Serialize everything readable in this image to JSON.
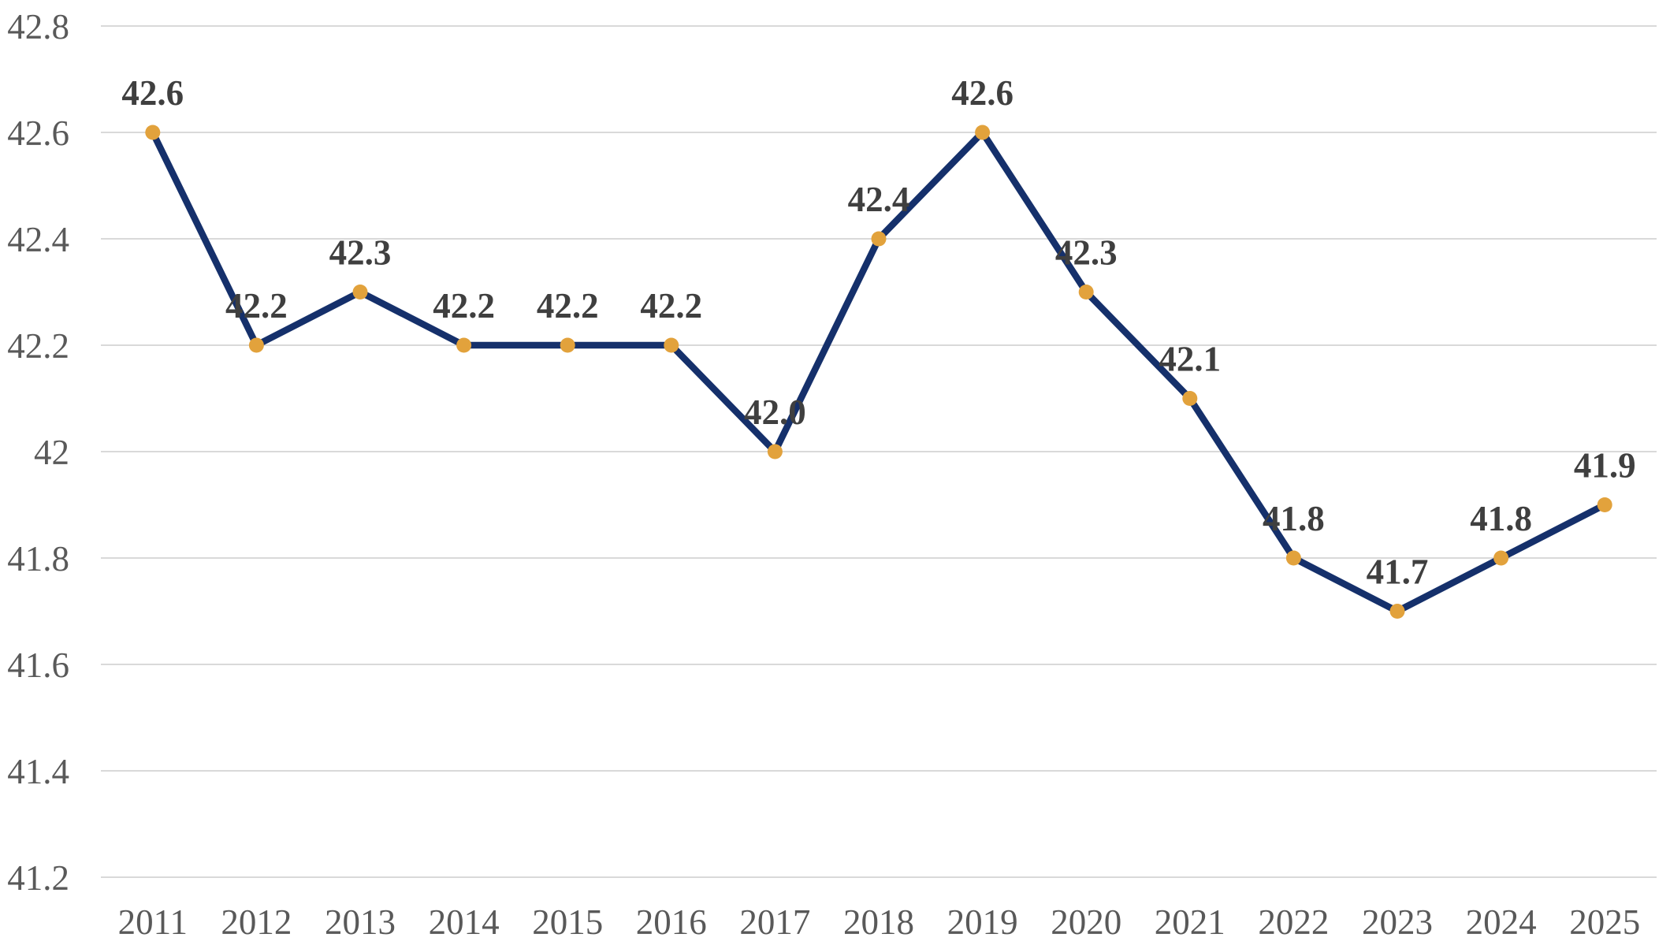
{
  "chart_data": {
    "type": "line",
    "title": "",
    "xlabel": "",
    "ylabel": "",
    "categories": [
      "2011",
      "2012",
      "2013",
      "2014",
      "2015",
      "2016",
      "2017",
      "2018",
      "2019",
      "2020",
      "2021",
      "2022",
      "2023",
      "2024",
      "2025"
    ],
    "series": [
      {
        "name": "series-1",
        "values": [
          42.6,
          42.2,
          42.3,
          42.2,
          42.2,
          42.2,
          42.0,
          42.4,
          42.6,
          42.3,
          42.1,
          41.8,
          41.7,
          41.8,
          41.9
        ],
        "data_labels": [
          "42.6",
          "42.2",
          "42.3",
          "42.2",
          "42.2",
          "42.2",
          "42.0",
          "42.4",
          "42.6",
          "42.3",
          "42.1",
          "41.8",
          "41.7",
          "41.8",
          "41.9"
        ]
      }
    ],
    "y_ticks": [
      {
        "value": 42.8,
        "label": "42.8"
      },
      {
        "value": 42.6,
        "label": "42.6"
      },
      {
        "value": 42.4,
        "label": "42.4"
      },
      {
        "value": 42.2,
        "label": "42.2"
      },
      {
        "value": 42.0,
        "label": "42"
      },
      {
        "value": 41.8,
        "label": "41.8"
      },
      {
        "value": 41.6,
        "label": "41.6"
      },
      {
        "value": 41.4,
        "label": "41.4"
      },
      {
        "value": 41.2,
        "label": "41.2"
      }
    ],
    "ylim": [
      41.2,
      42.8
    ],
    "grid": true,
    "legend": false,
    "colors": {
      "line": "#15306B",
      "marker": "#E2A23C",
      "gridline": "#D9D9D9",
      "axis_label": "#595959",
      "data_label": "#3F3F3F",
      "background": "#FFFFFF"
    }
  }
}
